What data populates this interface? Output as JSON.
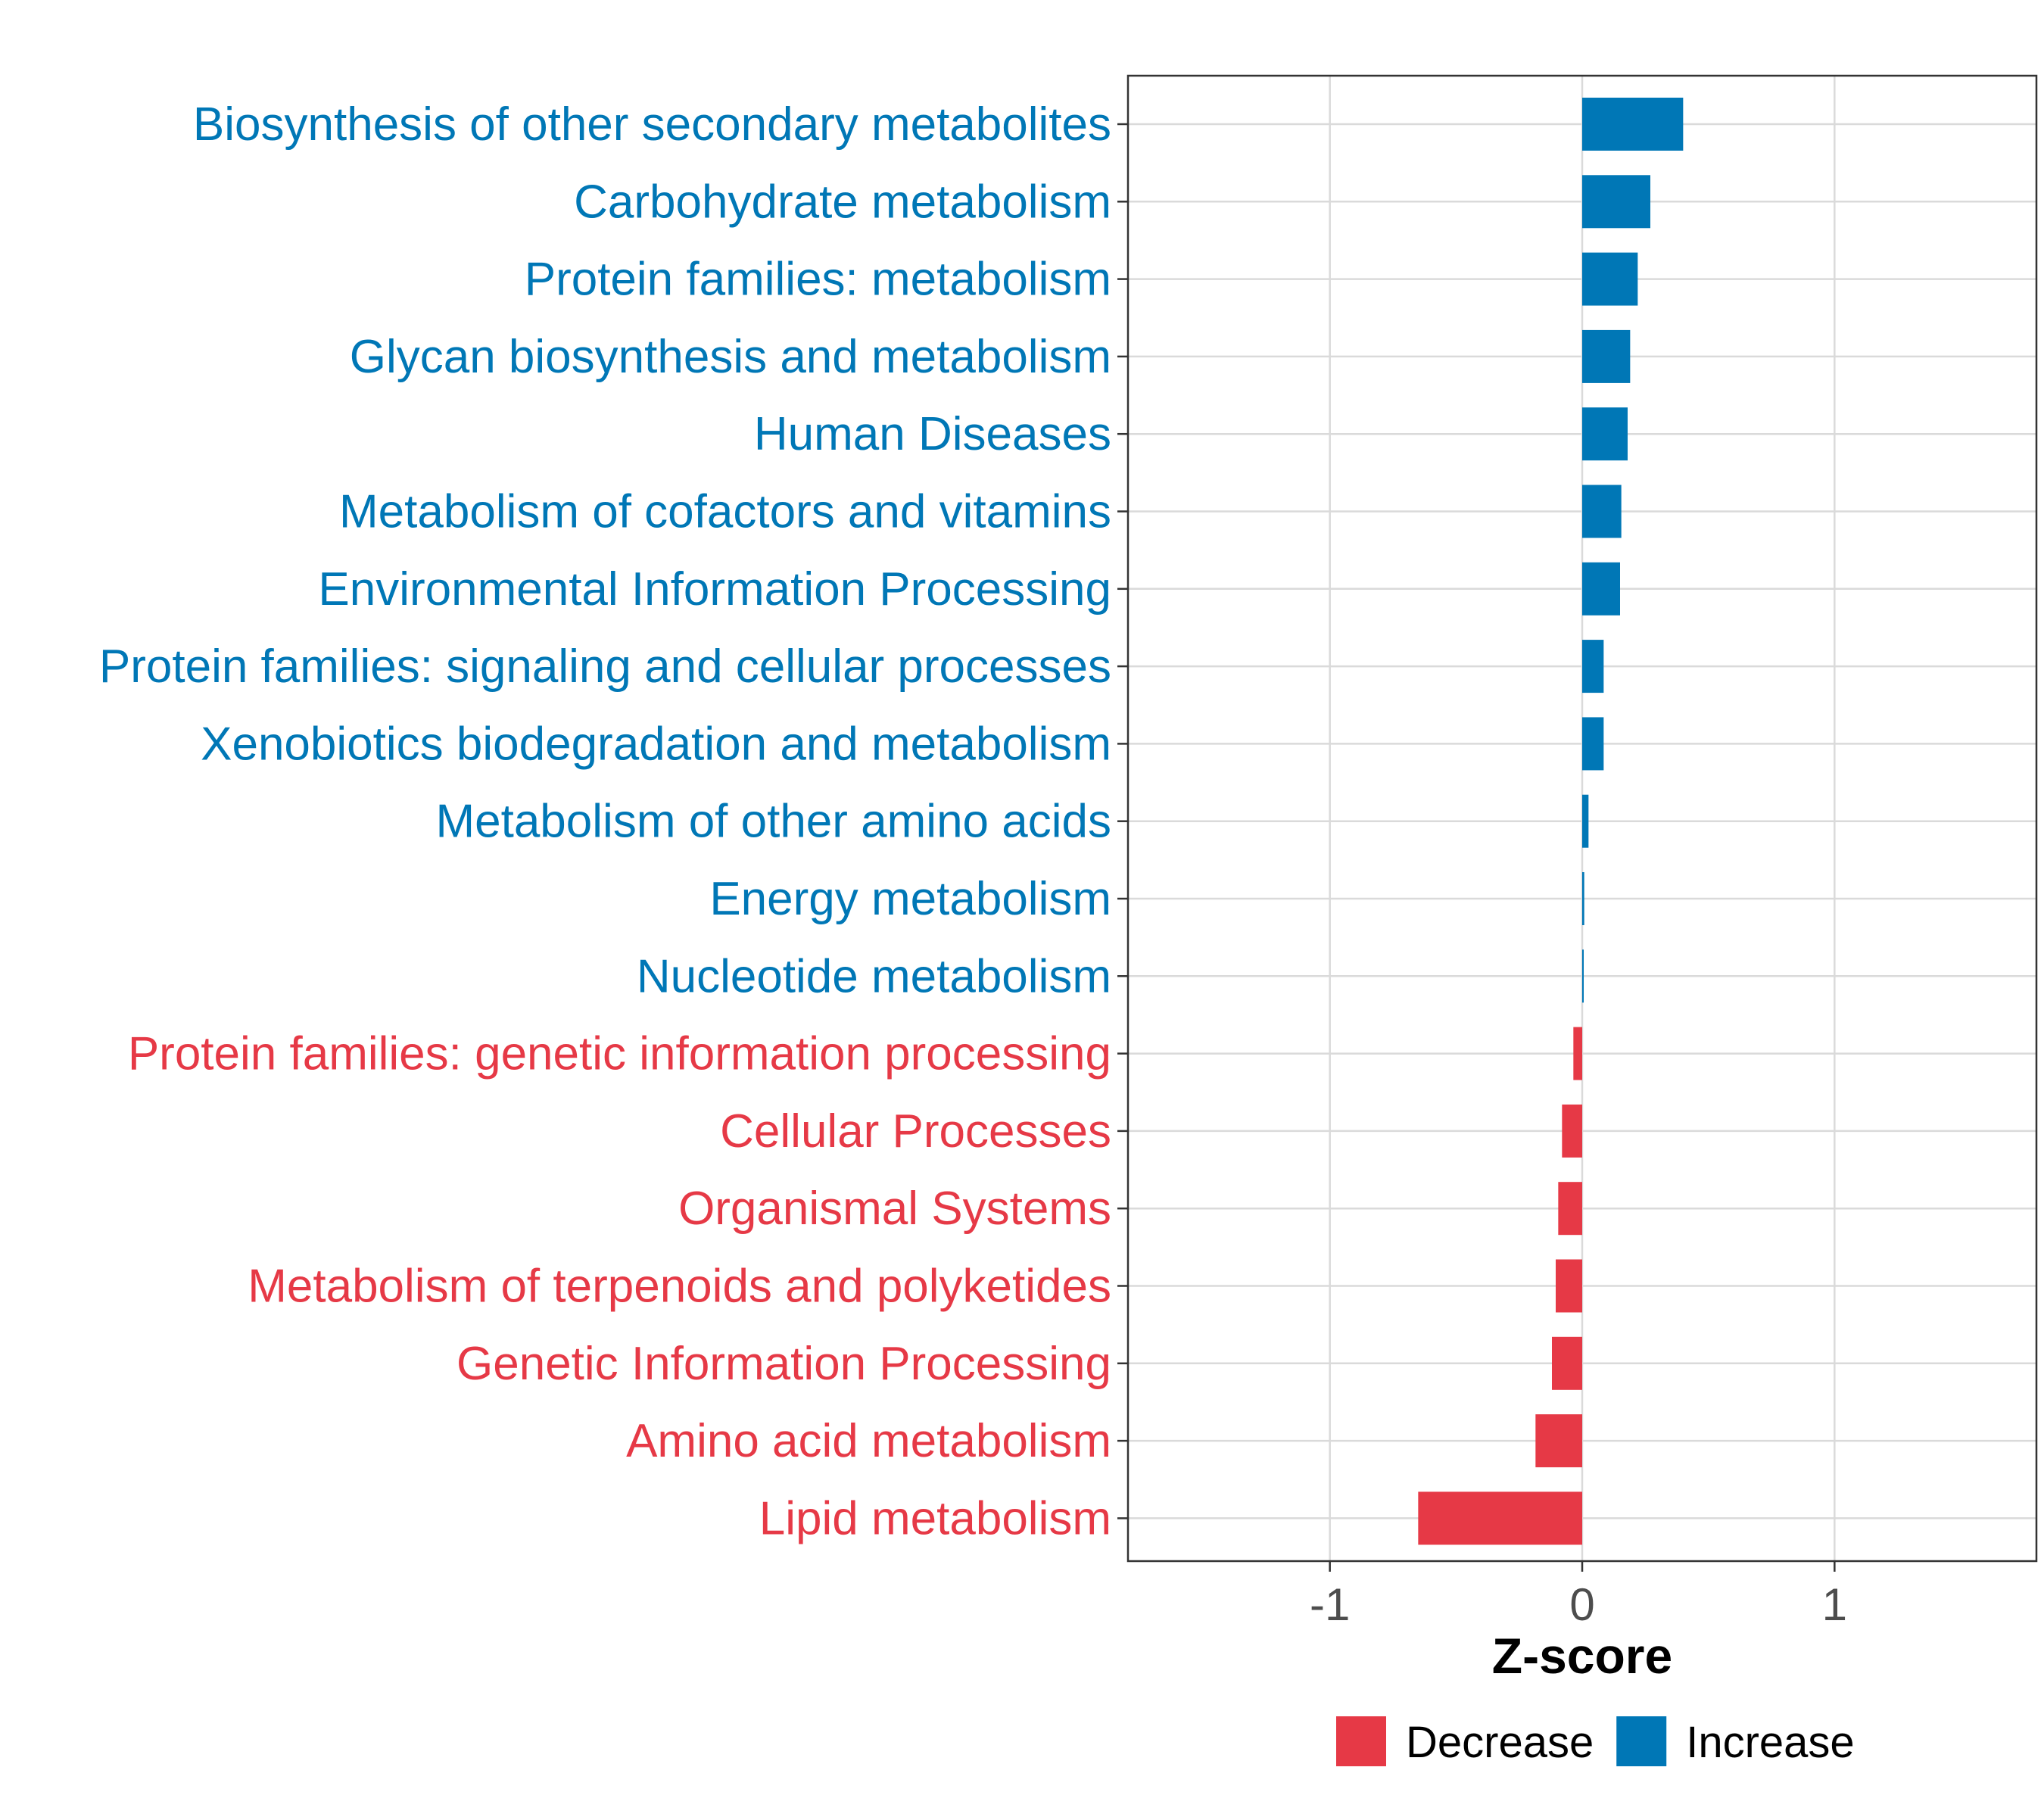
{
  "chart_data": {
    "type": "bar",
    "orientation": "horizontal",
    "categories": [
      "Biosynthesis of other secondary metabolites",
      "Carbohydrate metabolism",
      "Protein families: metabolism",
      "Glycan biosynthesis and metabolism",
      "Human Diseases",
      "Metabolism of cofactors and vitamins",
      "Environmental Information Processing",
      "Protein families: signaling and cellular processes",
      "Xenobiotics biodegradation and metabolism",
      "Metabolism of other amino acids",
      "Energy metabolism",
      "Nucleotide metabolism",
      "Protein families: genetic information processing",
      "Cellular Processes",
      "Organismal Systems",
      "Metabolism of terpenoids and polyketides",
      "Genetic Information Processing",
      "Amino acid metabolism",
      "Lipid metabolism"
    ],
    "values": [
      0.4,
      0.27,
      0.22,
      0.19,
      0.18,
      0.155,
      0.15,
      0.085,
      0.085,
      0.025,
      0.008,
      0.006,
      -0.035,
      -0.08,
      -0.095,
      -0.105,
      -0.12,
      -0.185,
      -0.65
    ],
    "groups": [
      "Increase",
      "Increase",
      "Increase",
      "Increase",
      "Increase",
      "Increase",
      "Increase",
      "Increase",
      "Increase",
      "Increase",
      "Increase",
      "Increase",
      "Decrease",
      "Decrease",
      "Decrease",
      "Decrease",
      "Decrease",
      "Decrease",
      "Decrease"
    ],
    "xlabel": "Z-score",
    "xlim": [
      -1.8,
      1.8
    ],
    "xticks": [
      -1,
      0,
      1
    ],
    "xtick_labels": [
      "-1",
      "0",
      "1"
    ],
    "grid": true,
    "legend": {
      "placement": "bottom",
      "entries": [
        {
          "label": "Decrease",
          "color": "#e63946"
        },
        {
          "label": "Increase",
          "color": "#0077b6"
        }
      ]
    },
    "colors": {
      "Increase": "#0077b6",
      "Decrease": "#e63946"
    }
  }
}
